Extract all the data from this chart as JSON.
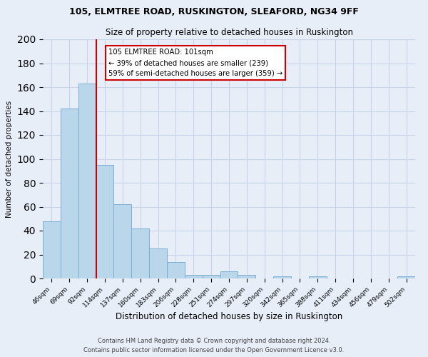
{
  "title1": "105, ELMTREE ROAD, RUSKINGTON, SLEAFORD, NG34 9FF",
  "title2": "Size of property relative to detached houses in Ruskington",
  "xlabel": "Distribution of detached houses by size in Ruskington",
  "ylabel": "Number of detached properties",
  "bar_labels": [
    "46sqm",
    "69sqm",
    "92sqm",
    "114sqm",
    "137sqm",
    "160sqm",
    "183sqm",
    "206sqm",
    "228sqm",
    "251sqm",
    "274sqm",
    "297sqm",
    "320sqm",
    "342sqm",
    "365sqm",
    "388sqm",
    "411sqm",
    "434sqm",
    "456sqm",
    "479sqm",
    "502sqm"
  ],
  "bar_values": [
    48,
    142,
    163,
    95,
    62,
    42,
    25,
    14,
    3,
    3,
    6,
    3,
    0,
    2,
    0,
    2,
    0,
    0,
    0,
    0,
    2
  ],
  "bar_color": "#bad6ea",
  "bar_edge_color": "#7bafd4",
  "grid_color": "#c8d4e8",
  "background_color": "#e8eef8",
  "vline_color": "#cc0000",
  "annotation_text": "105 ELMTREE ROAD: 101sqm\n← 39% of detached houses are smaller (239)\n59% of semi-detached houses are larger (359) →",
  "annotation_box_color": "white",
  "annotation_box_edge": "#cc0000",
  "ylim": [
    0,
    200
  ],
  "yticks": [
    0,
    20,
    40,
    60,
    80,
    100,
    120,
    140,
    160,
    180,
    200
  ],
  "footer1": "Contains HM Land Registry data © Crown copyright and database right 2024.",
  "footer2": "Contains public sector information licensed under the Open Government Licence v3.0."
}
